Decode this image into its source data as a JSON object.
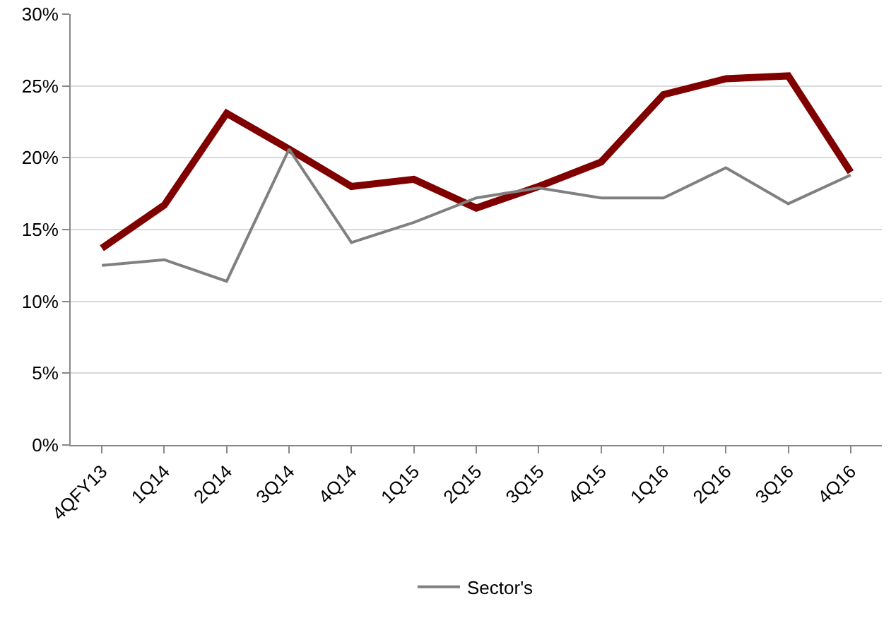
{
  "chart_data": {
    "type": "line",
    "categories": [
      "4QFY13",
      "1Q14",
      "2Q14",
      "3Q14",
      "4Q14",
      "1Q15",
      "2Q15",
      "3Q15",
      "4Q15",
      "1Q16",
      "2Q16",
      "3Q16",
      "4Q16"
    ],
    "series": [
      {
        "color": "#800000",
        "values": [
          13.7,
          16.7,
          23.1,
          20.6,
          18.0,
          18.5,
          16.5,
          18.0,
          19.7,
          24.4,
          25.5,
          25.7,
          19.0
        ]
      },
      {
        "name": "Sector's",
        "color": "#808080",
        "values": [
          12.5,
          12.9,
          11.4,
          20.6,
          14.1,
          15.5,
          17.2,
          17.9,
          17.2,
          17.2,
          19.3,
          16.8,
          18.8
        ]
      }
    ],
    "ylim": [
      0,
      30
    ],
    "yticks": [
      {
        "value": 0,
        "label": "0%"
      },
      {
        "value": 5,
        "label": "5%"
      },
      {
        "value": 10,
        "label": "10%"
      },
      {
        "value": 15,
        "label": "15%"
      },
      {
        "value": 20,
        "label": "20%"
      },
      {
        "value": 25,
        "label": "25%"
      },
      {
        "value": 30,
        "label": "30%"
      }
    ],
    "grid": "y",
    "legend": "bottom",
    "marker": "none",
    "line_style": "solid"
  }
}
